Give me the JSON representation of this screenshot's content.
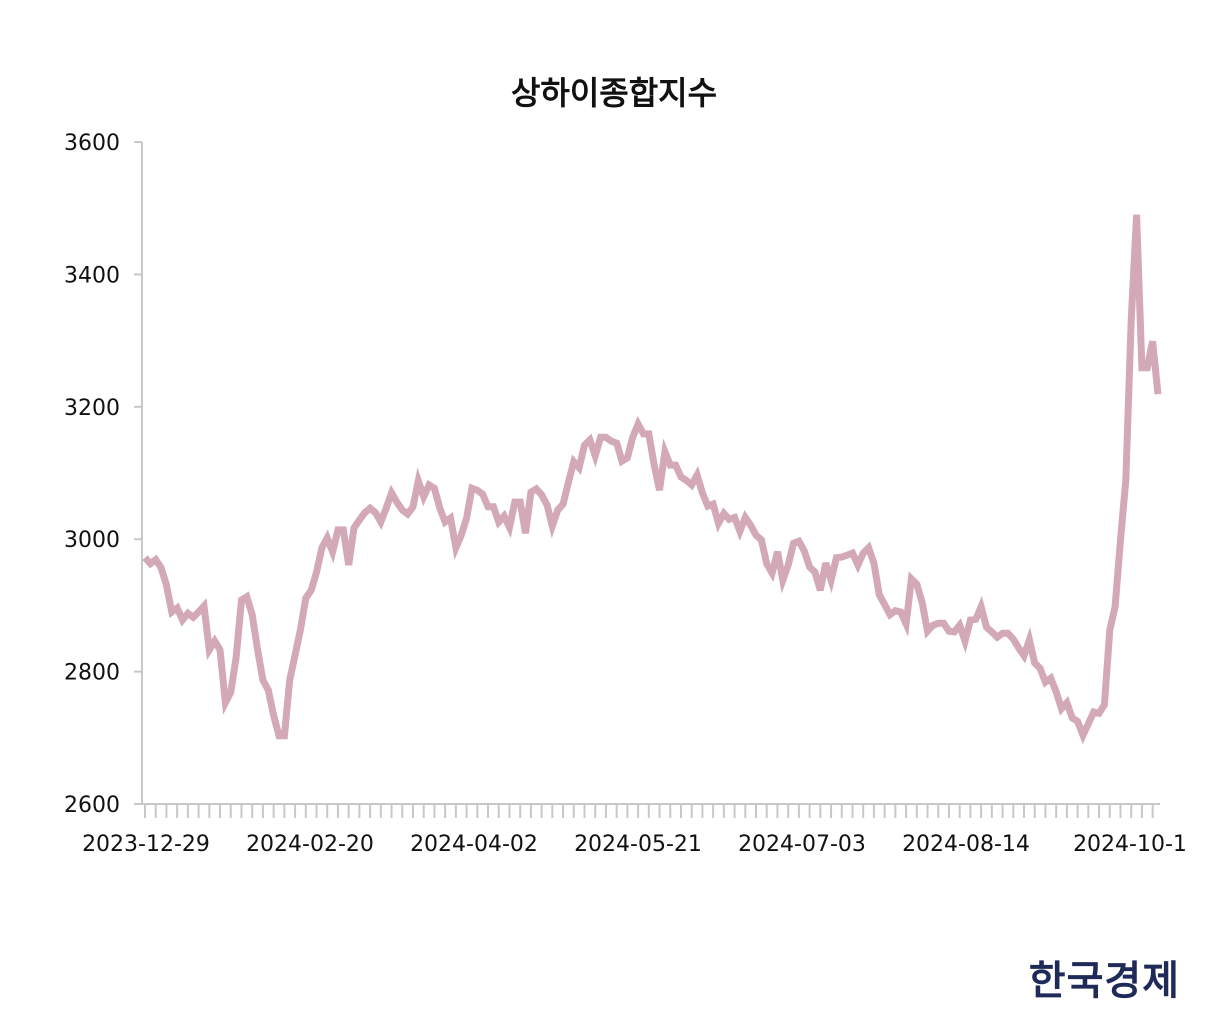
{
  "colors": {
    "line": "#d4a9b7",
    "axis": "#c8c8c8",
    "text": "#111111",
    "logo": "#1e2a57"
  },
  "logo_text": "한국경제",
  "chart_data": {
    "type": "line",
    "title": "상하이종합지수",
    "xlabel": "",
    "ylabel": "",
    "ylim": [
      2600,
      3600
    ],
    "y_ticks": [
      2600,
      2800,
      3000,
      3200,
      3400,
      3600
    ],
    "x_tick_labels": [
      "2023-12-29",
      "2024-02-20",
      "2024-04-02",
      "2024-05-21",
      "2024-07-03",
      "2024-08-14",
      "2024-10-1"
    ],
    "grid": false,
    "values": [
      2972,
      2963,
      2969,
      2957,
      2931,
      2890,
      2896,
      2878,
      2888,
      2882,
      2890,
      2899,
      2833,
      2846,
      2833,
      2753,
      2769,
      2821,
      2908,
      2913,
      2886,
      2833,
      2787,
      2772,
      2734,
      2703,
      2703,
      2787,
      2825,
      2863,
      2911,
      2923,
      2950,
      2987,
      3002,
      2981,
      3014,
      3014,
      2961,
      3017,
      3029,
      3040,
      3047,
      3040,
      3026,
      3047,
      3070,
      3056,
      3044,
      3038,
      3049,
      3088,
      3064,
      3082,
      3077,
      3047,
      3026,
      3032,
      2987,
      3006,
      3032,
      3077,
      3074,
      3068,
      3049,
      3049,
      3026,
      3035,
      3018,
      3056,
      3056,
      3009,
      3071,
      3076,
      3067,
      3052,
      3020,
      3044,
      3053,
      3086,
      3117,
      3108,
      3142,
      3150,
      3126,
      3154,
      3154,
      3148,
      3145,
      3118,
      3123,
      3154,
      3174,
      3159,
      3159,
      3112,
      3074,
      3132,
      3112,
      3112,
      3094,
      3089,
      3082,
      3097,
      3070,
      3050,
      3053,
      3024,
      3039,
      3030,
      3033,
      3012,
      3033,
      3021,
      3006,
      2999,
      2963,
      2949,
      2981,
      2938,
      2961,
      2994,
      2997,
      2982,
      2958,
      2950,
      2923,
      2964,
      2938,
      2972,
      2973,
      2976,
      2979,
      2961,
      2979,
      2987,
      2964,
      2916,
      2901,
      2886,
      2892,
      2890,
      2872,
      2940,
      2932,
      2904,
      2861,
      2870,
      2873,
      2873,
      2861,
      2860,
      2870,
      2846,
      2878,
      2879,
      2898,
      2867,
      2860,
      2852,
      2858,
      2858,
      2849,
      2836,
      2824,
      2848,
      2813,
      2805,
      2784,
      2790,
      2769,
      2744,
      2753,
      2730,
      2725,
      2704,
      2721,
      2739,
      2737,
      2750,
      2863,
      2898,
      2999,
      3089,
      3331,
      3490,
      3259,
      3259,
      3299,
      3219
    ]
  }
}
